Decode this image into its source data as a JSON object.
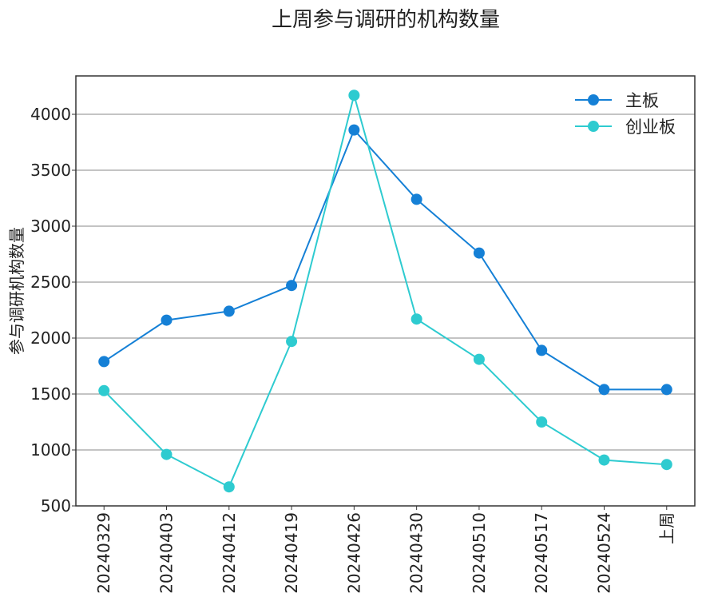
{
  "chart_data": {
    "type": "line",
    "title": "上周参与调研的机构数量",
    "xlabel": "",
    "ylabel": "参与调研机构数量",
    "categories": [
      "20240329",
      "20240403",
      "20240412",
      "20240419",
      "20240426",
      "20240430",
      "20240510",
      "20240517",
      "20240524",
      "上周"
    ],
    "series": [
      {
        "name": "主板",
        "color": "#1580d6",
        "values": [
          1790,
          2160,
          2240,
          2470,
          3860,
          3240,
          2760,
          1890,
          1540,
          1540
        ]
      },
      {
        "name": "创业板",
        "color": "#2ecbd0",
        "values": [
          1530,
          960,
          670,
          1970,
          4170,
          2170,
          1810,
          1250,
          910,
          870
        ]
      }
    ],
    "ylim": [
      500,
      4343
    ],
    "yticks": [
      500,
      1000,
      1500,
      2000,
      2500,
      3000,
      3500,
      4000
    ],
    "grid": "horizontal",
    "legend": "top-right"
  }
}
